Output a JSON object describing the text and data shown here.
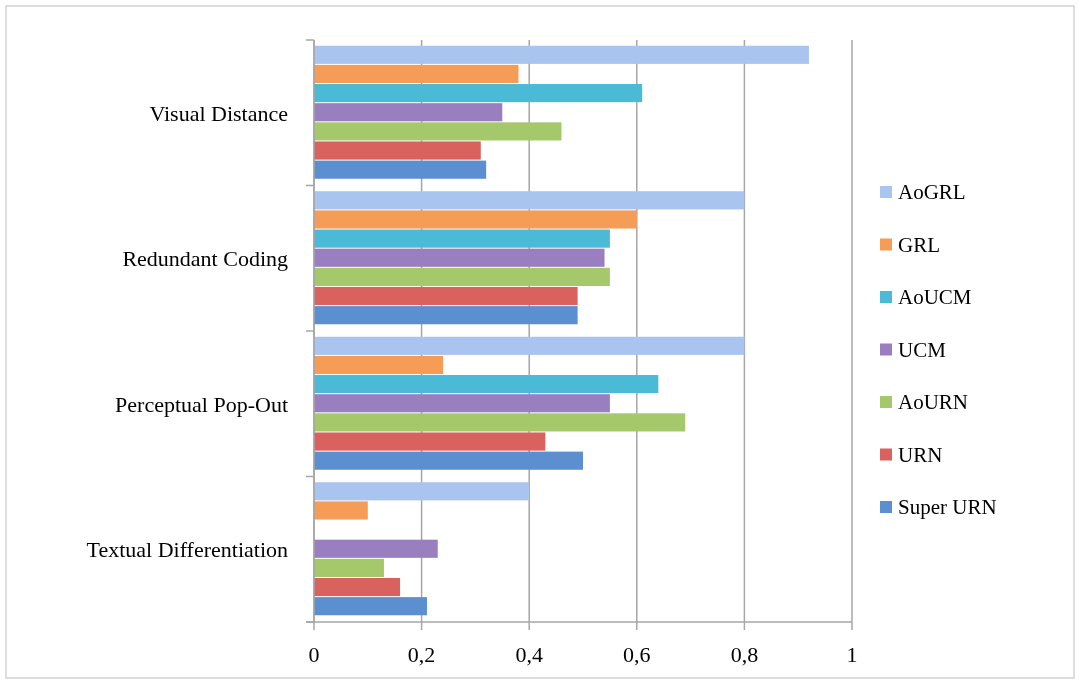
{
  "chart_data": {
    "type": "bar",
    "orientation": "horizontal",
    "categories": [
      "Visual Distance",
      "Redundant Coding",
      "Perceptual Pop-Out",
      "Textual Differentiation"
    ],
    "series": [
      {
        "name": "AoGRL",
        "color": "#a9c4ee",
        "values": [
          0.92,
          0.8,
          0.8,
          0.4
        ]
      },
      {
        "name": "GRL",
        "color": "#f59d56",
        "values": [
          0.38,
          0.6,
          0.24,
          0.1
        ]
      },
      {
        "name": "AoUCM",
        "color": "#4bbad6",
        "values": [
          0.61,
          0.55,
          0.64,
          null
        ]
      },
      {
        "name": "UCM",
        "color": "#9a7fc0",
        "values": [
          0.35,
          0.54,
          0.55,
          0.23
        ]
      },
      {
        "name": "AoURN",
        "color": "#a5c86a",
        "values": [
          0.46,
          0.55,
          0.69,
          0.13
        ]
      },
      {
        "name": "URN",
        "color": "#d9625e",
        "values": [
          0.31,
          0.49,
          0.43,
          0.16
        ]
      },
      {
        "name": "Super URN",
        "color": "#5b8fd0",
        "values": [
          0.32,
          0.49,
          0.5,
          0.21
        ]
      }
    ],
    "xlim": [
      0,
      1
    ],
    "xticks": [
      0,
      {
        "value": 0.2,
        "label": "0,2"
      },
      {
        "value": 0.4,
        "label": "0,4"
      },
      {
        "value": 0.6,
        "label": "0,6"
      },
      {
        "value": 0.8,
        "label": "0,8"
      },
      1
    ],
    "grid": "x",
    "legend": "right"
  }
}
